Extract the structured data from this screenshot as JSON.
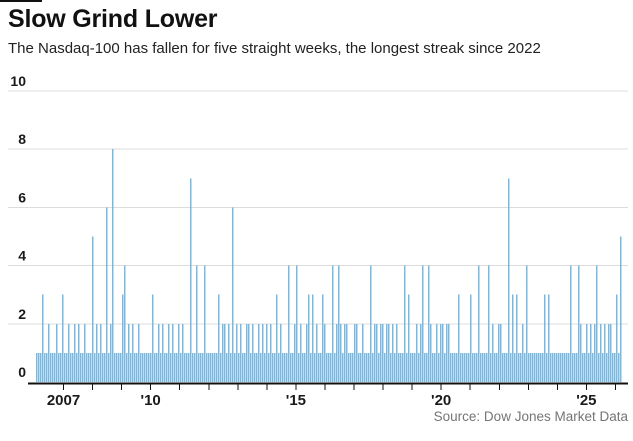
{
  "header": {
    "title": "Slow Grind Lower",
    "subtitle": "The Nasdaq-100 has fallen for five straight weeks, the longest streak since 2022"
  },
  "footer": {
    "source": "Source: Dow Jones Market Data"
  },
  "colors": {
    "bar": "#79b8e2",
    "grid": "#dcdcdc",
    "axis": "#111111",
    "tick_label": "#1a1a1a",
    "source_text": "#757575",
    "background": "#ffffff"
  },
  "chart_data": {
    "type": "bar",
    "title": "Slow Grind Lower",
    "subtitle": "The Nasdaq-100 has fallen for five straight weeks, the longest streak since 2022",
    "xlabel": "",
    "ylabel": "",
    "ylim": [
      0,
      10
    ],
    "yticks": [
      0,
      2,
      4,
      6,
      8,
      10
    ],
    "grid": true,
    "legend": "none",
    "x_axis": {
      "start_year": 2006,
      "end_year": 2026,
      "tick_every_year": true,
      "labeled_ticks": [
        {
          "year": 2007,
          "label": "2007"
        },
        {
          "year": 2010,
          "label": "'10"
        },
        {
          "year": 2015,
          "label": "'15"
        },
        {
          "year": 2020,
          "label": "'20"
        },
        {
          "year": 2025,
          "label": "'25"
        }
      ]
    },
    "series_description": "Consecutive weekly losing streak lengths, weekly bars 2006-2026; notable peaks: 8 in 2008, 7 in 2011, 6 in 2012, 7 in 2022, 5 in 2025",
    "values": [
      1,
      1,
      1,
      3,
      1,
      1,
      2,
      1,
      1,
      1,
      2,
      1,
      1,
      3,
      1,
      1,
      2,
      1,
      1,
      2,
      1,
      2,
      1,
      1,
      2,
      1,
      1,
      1,
      5,
      1,
      2,
      1,
      2,
      1,
      1,
      6,
      1,
      2,
      8,
      1,
      1,
      1,
      1,
      3,
      4,
      1,
      2,
      1,
      2,
      1,
      1,
      2,
      1,
      1,
      1,
      1,
      1,
      1,
      3,
      1,
      1,
      2,
      1,
      2,
      1,
      1,
      2,
      1,
      2,
      1,
      1,
      2,
      1,
      2,
      1,
      1,
      1,
      7,
      1,
      1,
      4,
      1,
      1,
      1,
      4,
      1,
      1,
      1,
      1,
      1,
      1,
      3,
      1,
      2,
      2,
      1,
      2,
      1,
      6,
      1,
      2,
      1,
      2,
      1,
      1,
      2,
      2,
      1,
      2,
      1,
      1,
      2,
      1,
      2,
      1,
      2,
      1,
      2,
      1,
      1,
      3,
      1,
      2,
      1,
      1,
      1,
      4,
      1,
      1,
      2,
      4,
      1,
      2,
      1,
      1,
      2,
      3,
      1,
      3,
      1,
      2,
      1,
      1,
      3,
      2,
      1,
      1,
      1,
      4,
      1,
      2,
      4,
      2,
      1,
      2,
      2,
      1,
      1,
      1,
      2,
      2,
      1,
      1,
      2,
      1,
      1,
      1,
      4,
      1,
      2,
      2,
      1,
      2,
      2,
      1,
      2,
      2,
      1,
      2,
      1,
      2,
      1,
      1,
      1,
      4,
      1,
      3,
      1,
      1,
      1,
      2,
      1,
      2,
      4,
      1,
      1,
      4,
      2,
      1,
      1,
      2,
      1,
      2,
      2,
      1,
      2,
      2,
      1,
      1,
      1,
      1,
      3,
      1,
      1,
      1,
      1,
      1,
      3,
      1,
      1,
      1,
      4,
      1,
      1,
      1,
      1,
      4,
      1,
      2,
      1,
      1,
      2,
      2,
      1,
      1,
      1,
      7,
      1,
      3,
      1,
      3,
      1,
      1,
      2,
      1,
      4,
      1,
      1,
      1,
      1,
      1,
      1,
      1,
      1,
      3,
      1,
      3,
      1,
      1,
      1,
      1,
      1,
      1,
      1,
      1,
      1,
      1,
      4,
      1,
      1,
      1,
      4,
      2,
      1,
      1,
      2,
      1,
      2,
      1,
      2,
      4,
      1,
      2,
      1,
      2,
      1,
      2,
      2,
      1,
      1,
      3,
      1,
      5
    ]
  }
}
